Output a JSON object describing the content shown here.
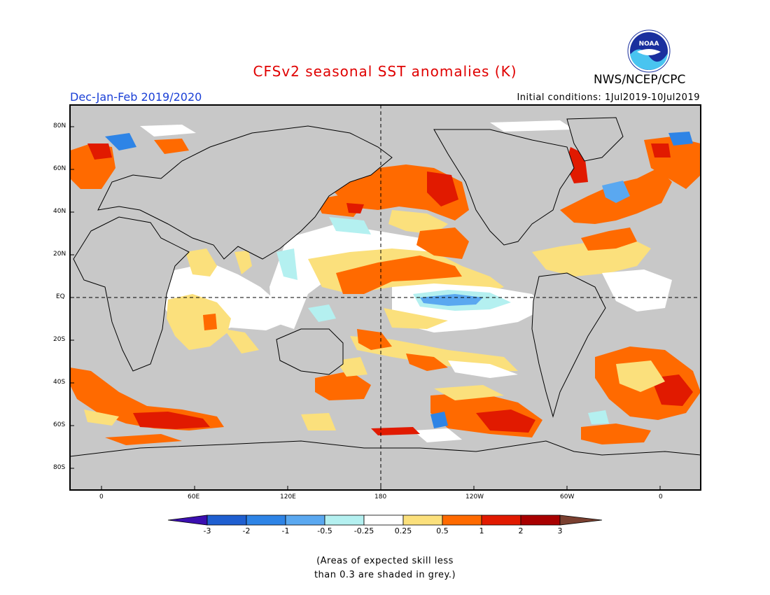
{
  "title": "CFSv2 seasonal SST anomalies (K)",
  "agency": "NWS/NCEP/CPC",
  "logo_text": "NOAA",
  "season": "Dec-Jan-Feb 2019/2020",
  "initial_conditions": "Initial conditions: 1Jul2019-10Jul2019",
  "lat_ticks": [
    "80N",
    "60N",
    "40N",
    "20N",
    "EQ",
    "20S",
    "40S",
    "60S",
    "80S"
  ],
  "lon_ticks": [
    "0",
    "60E",
    "120E",
    "180",
    "120W",
    "60W",
    "0"
  ],
  "colorbar": {
    "labels": [
      "-3",
      "-2",
      "-1",
      "-0.5",
      "-0.25",
      "0.25",
      "0.5",
      "1",
      "2",
      "3"
    ],
    "colors": [
      "#3b0fb0",
      "#1f5fd0",
      "#2e84e6",
      "#5aa8f0",
      "#b4f0f0",
      "#ffffff",
      "#fbe07c",
      "#ff6a00",
      "#e11a00",
      "#a80000",
      "#7a4030"
    ]
  },
  "note": [
    "(Areas of expected skill less",
    "than 0.3 are shaded in grey.)"
  ],
  "colors": {
    "grey": "#c8c8c8",
    "title_red": "#e00000",
    "season_blue": "#1a3fd6"
  }
}
